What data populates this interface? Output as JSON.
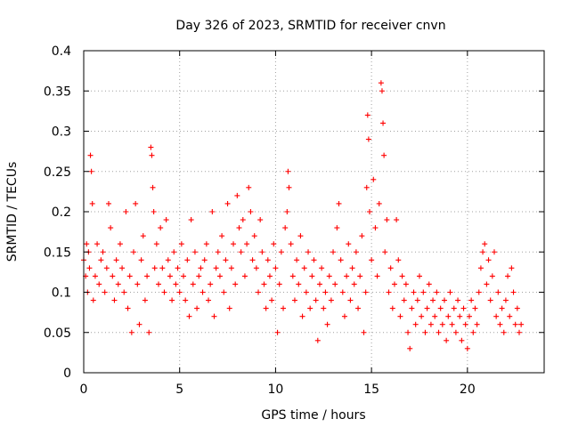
{
  "chart_data": {
    "type": "scatter",
    "title": "Day 326 of 2023, SRMTID for receiver cnvn",
    "xlabel": "GPS time / hours",
    "ylabel": "SRMTID / TECUs",
    "xlim": [
      0,
      24
    ],
    "ylim": [
      0,
      0.4
    ],
    "xticks": [
      0,
      5,
      10,
      15,
      20
    ],
    "xtick_labels": [
      "0",
      "5",
      "10",
      "15",
      "20"
    ],
    "yticks": [
      0,
      0.05,
      0.1,
      0.15,
      0.2,
      0.25,
      0.3,
      0.35,
      0.4
    ],
    "ytick_labels": [
      "0",
      "0.05",
      "0.1",
      "0.15",
      "0.2",
      "0.25",
      "0.3",
      "0.35",
      "0.4"
    ],
    "grid": true,
    "marker": "+",
    "series": [
      {
        "name": "SRMTID",
        "color": "#ff0000",
        "points": [
          [
            0.0,
            0.14
          ],
          [
            0.1,
            0.12
          ],
          [
            0.15,
            0.16
          ],
          [
            0.2,
            0.1
          ],
          [
            0.25,
            0.15
          ],
          [
            0.3,
            0.13
          ],
          [
            0.35,
            0.27
          ],
          [
            0.4,
            0.25
          ],
          [
            0.45,
            0.21
          ],
          [
            0.5,
            0.09
          ],
          [
            0.6,
            0.12
          ],
          [
            0.7,
            0.16
          ],
          [
            0.8,
            0.11
          ],
          [
            0.9,
            0.14
          ],
          [
            1.0,
            0.15
          ],
          [
            1.1,
            0.1
          ],
          [
            1.2,
            0.13
          ],
          [
            1.3,
            0.21
          ],
          [
            1.4,
            0.18
          ],
          [
            1.5,
            0.12
          ],
          [
            1.6,
            0.09
          ],
          [
            1.7,
            0.14
          ],
          [
            1.8,
            0.11
          ],
          [
            1.9,
            0.16
          ],
          [
            2.0,
            0.13
          ],
          [
            2.1,
            0.1
          ],
          [
            2.2,
            0.2
          ],
          [
            2.3,
            0.08
          ],
          [
            2.4,
            0.12
          ],
          [
            2.5,
            0.05
          ],
          [
            2.6,
            0.15
          ],
          [
            2.7,
            0.21
          ],
          [
            2.8,
            0.11
          ],
          [
            2.9,
            0.06
          ],
          [
            3.0,
            0.14
          ],
          [
            3.1,
            0.17
          ],
          [
            3.2,
            0.09
          ],
          [
            3.3,
            0.12
          ],
          [
            3.4,
            0.05
          ],
          [
            3.5,
            0.28
          ],
          [
            3.55,
            0.27
          ],
          [
            3.6,
            0.23
          ],
          [
            3.65,
            0.2
          ],
          [
            3.7,
            0.13
          ],
          [
            3.8,
            0.16
          ],
          [
            3.9,
            0.11
          ],
          [
            4.0,
            0.18
          ],
          [
            4.1,
            0.13
          ],
          [
            4.2,
            0.1
          ],
          [
            4.3,
            0.19
          ],
          [
            4.4,
            0.14
          ],
          [
            4.5,
            0.12
          ],
          [
            4.6,
            0.09
          ],
          [
            4.7,
            0.15
          ],
          [
            4.8,
            0.11
          ],
          [
            4.9,
            0.13
          ],
          [
            5.0,
            0.1
          ],
          [
            5.1,
            0.16
          ],
          [
            5.2,
            0.12
          ],
          [
            5.3,
            0.09
          ],
          [
            5.4,
            0.14
          ],
          [
            5.5,
            0.07
          ],
          [
            5.6,
            0.19
          ],
          [
            5.7,
            0.11
          ],
          [
            5.8,
            0.15
          ],
          [
            5.9,
            0.08
          ],
          [
            6.0,
            0.12
          ],
          [
            6.1,
            0.13
          ],
          [
            6.2,
            0.1
          ],
          [
            6.3,
            0.14
          ],
          [
            6.4,
            0.16
          ],
          [
            6.5,
            0.09
          ],
          [
            6.6,
            0.11
          ],
          [
            6.7,
            0.2
          ],
          [
            6.8,
            0.07
          ],
          [
            6.9,
            0.13
          ],
          [
            7.0,
            0.15
          ],
          [
            7.1,
            0.12
          ],
          [
            7.2,
            0.17
          ],
          [
            7.3,
            0.1
          ],
          [
            7.4,
            0.14
          ],
          [
            7.5,
            0.21
          ],
          [
            7.6,
            0.08
          ],
          [
            7.7,
            0.13
          ],
          [
            7.8,
            0.16
          ],
          [
            7.9,
            0.11
          ],
          [
            8.0,
            0.22
          ],
          [
            8.1,
            0.18
          ],
          [
            8.2,
            0.15
          ],
          [
            8.3,
            0.19
          ],
          [
            8.4,
            0.12
          ],
          [
            8.5,
            0.16
          ],
          [
            8.6,
            0.23
          ],
          [
            8.7,
            0.2
          ],
          [
            8.8,
            0.14
          ],
          [
            8.9,
            0.17
          ],
          [
            9.0,
            0.13
          ],
          [
            9.1,
            0.1
          ],
          [
            9.2,
            0.19
          ],
          [
            9.3,
            0.15
          ],
          [
            9.4,
            0.11
          ],
          [
            9.5,
            0.08
          ],
          [
            9.6,
            0.14
          ],
          [
            9.7,
            0.12
          ],
          [
            9.8,
            0.09
          ],
          [
            9.9,
            0.16
          ],
          [
            10.0,
            0.13
          ],
          [
            10.1,
            0.05
          ],
          [
            10.2,
            0.11
          ],
          [
            10.3,
            0.15
          ],
          [
            10.4,
            0.08
          ],
          [
            10.5,
            0.18
          ],
          [
            10.6,
            0.2
          ],
          [
            10.65,
            0.25
          ],
          [
            10.7,
            0.23
          ],
          [
            10.8,
            0.16
          ],
          [
            10.9,
            0.12
          ],
          [
            11.0,
            0.09
          ],
          [
            11.1,
            0.14
          ],
          [
            11.2,
            0.11
          ],
          [
            11.3,
            0.17
          ],
          [
            11.4,
            0.07
          ],
          [
            11.5,
            0.13
          ],
          [
            11.6,
            0.1
          ],
          [
            11.7,
            0.15
          ],
          [
            11.8,
            0.08
          ],
          [
            11.9,
            0.12
          ],
          [
            12.0,
            0.14
          ],
          [
            12.1,
            0.09
          ],
          [
            12.2,
            0.04
          ],
          [
            12.3,
            0.11
          ],
          [
            12.4,
            0.13
          ],
          [
            12.5,
            0.08
          ],
          [
            12.6,
            0.1
          ],
          [
            12.7,
            0.06
          ],
          [
            12.8,
            0.12
          ],
          [
            12.9,
            0.09
          ],
          [
            13.0,
            0.15
          ],
          [
            13.1,
            0.11
          ],
          [
            13.2,
            0.18
          ],
          [
            13.3,
            0.21
          ],
          [
            13.4,
            0.14
          ],
          [
            13.5,
            0.1
          ],
          [
            13.6,
            0.07
          ],
          [
            13.7,
            0.12
          ],
          [
            13.8,
            0.16
          ],
          [
            13.9,
            0.09
          ],
          [
            14.0,
            0.13
          ],
          [
            14.1,
            0.11
          ],
          [
            14.2,
            0.15
          ],
          [
            14.3,
            0.08
          ],
          [
            14.4,
            0.12
          ],
          [
            14.5,
            0.17
          ],
          [
            14.6,
            0.05
          ],
          [
            14.7,
            0.1
          ],
          [
            14.75,
            0.23
          ],
          [
            14.8,
            0.32
          ],
          [
            14.85,
            0.29
          ],
          [
            14.9,
            0.2
          ],
          [
            15.0,
            0.14
          ],
          [
            15.1,
            0.24
          ],
          [
            15.2,
            0.18
          ],
          [
            15.3,
            0.12
          ],
          [
            15.4,
            0.21
          ],
          [
            15.5,
            0.36
          ],
          [
            15.55,
            0.35
          ],
          [
            15.6,
            0.31
          ],
          [
            15.65,
            0.27
          ],
          [
            15.7,
            0.15
          ],
          [
            15.8,
            0.19
          ],
          [
            15.9,
            0.1
          ],
          [
            16.0,
            0.13
          ],
          [
            16.1,
            0.08
          ],
          [
            16.2,
            0.11
          ],
          [
            16.3,
            0.19
          ],
          [
            16.4,
            0.14
          ],
          [
            16.5,
            0.07
          ],
          [
            16.6,
            0.12
          ],
          [
            16.7,
            0.09
          ],
          [
            16.8,
            0.11
          ],
          [
            16.9,
            0.05
          ],
          [
            17.0,
            0.03
          ],
          [
            17.1,
            0.08
          ],
          [
            17.2,
            0.1
          ],
          [
            17.3,
            0.06
          ],
          [
            17.4,
            0.09
          ],
          [
            17.5,
            0.12
          ],
          [
            17.6,
            0.07
          ],
          [
            17.7,
            0.1
          ],
          [
            17.8,
            0.05
          ],
          [
            17.9,
            0.08
          ],
          [
            18.0,
            0.11
          ],
          [
            18.1,
            0.06
          ],
          [
            18.2,
            0.09
          ],
          [
            18.3,
            0.07
          ],
          [
            18.4,
            0.1
          ],
          [
            18.5,
            0.05
          ],
          [
            18.6,
            0.08
          ],
          [
            18.7,
            0.06
          ],
          [
            18.8,
            0.09
          ],
          [
            18.9,
            0.04
          ],
          [
            19.0,
            0.07
          ],
          [
            19.1,
            0.1
          ],
          [
            19.2,
            0.06
          ],
          [
            19.3,
            0.08
          ],
          [
            19.4,
            0.05
          ],
          [
            19.5,
            0.09
          ],
          [
            19.6,
            0.07
          ],
          [
            19.7,
            0.04
          ],
          [
            19.8,
            0.08
          ],
          [
            19.9,
            0.06
          ],
          [
            20.0,
            0.03
          ],
          [
            20.1,
            0.07
          ],
          [
            20.2,
            0.09
          ],
          [
            20.3,
            0.05
          ],
          [
            20.4,
            0.08
          ],
          [
            20.5,
            0.06
          ],
          [
            20.6,
            0.1
          ],
          [
            20.7,
            0.13
          ],
          [
            20.8,
            0.15
          ],
          [
            20.9,
            0.16
          ],
          [
            21.0,
            0.11
          ],
          [
            21.1,
            0.14
          ],
          [
            21.2,
            0.09
          ],
          [
            21.3,
            0.12
          ],
          [
            21.4,
            0.15
          ],
          [
            21.5,
            0.07
          ],
          [
            21.6,
            0.1
          ],
          [
            21.7,
            0.06
          ],
          [
            21.8,
            0.08
          ],
          [
            21.9,
            0.05
          ],
          [
            22.0,
            0.09
          ],
          [
            22.1,
            0.12
          ],
          [
            22.2,
            0.07
          ],
          [
            22.3,
            0.13
          ],
          [
            22.4,
            0.1
          ],
          [
            22.5,
            0.06
          ],
          [
            22.6,
            0.08
          ],
          [
            22.7,
            0.05
          ],
          [
            22.8,
            0.06
          ]
        ]
      }
    ]
  }
}
